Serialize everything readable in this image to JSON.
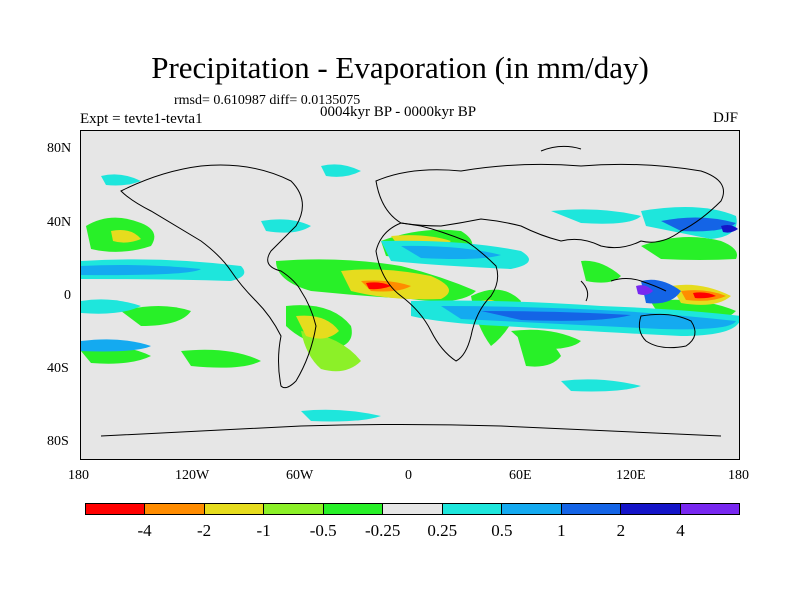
{
  "title": "Precipitation - Evaporation (in mm/day)",
  "stats": "rmsd= 0.610987 diff= 0.0135075",
  "experiment": "Expt = tevte1-tevta1",
  "period": "0004kyr BP - 0000kyr BP",
  "season": "DJF",
  "lat_labels": [
    "80N",
    "40N",
    "0",
    "40S",
    "80S"
  ],
  "lon_labels": [
    "180",
    "120W",
    "60W",
    "0",
    "60E",
    "120E",
    "180"
  ],
  "colorbar": {
    "colors": [
      "#ff0000",
      "#ff8c00",
      "#e6dc1e",
      "#8cf028",
      "#28f028",
      "#e6e6e6",
      "#1ee6dc",
      "#14aaf0",
      "#1464e6",
      "#1414c8",
      "#7828f0"
    ],
    "labels": [
      "-4",
      "-2",
      "-1",
      "-0.5",
      "-0.25",
      "0.25",
      "0.5",
      "1",
      "2",
      "4"
    ]
  }
}
